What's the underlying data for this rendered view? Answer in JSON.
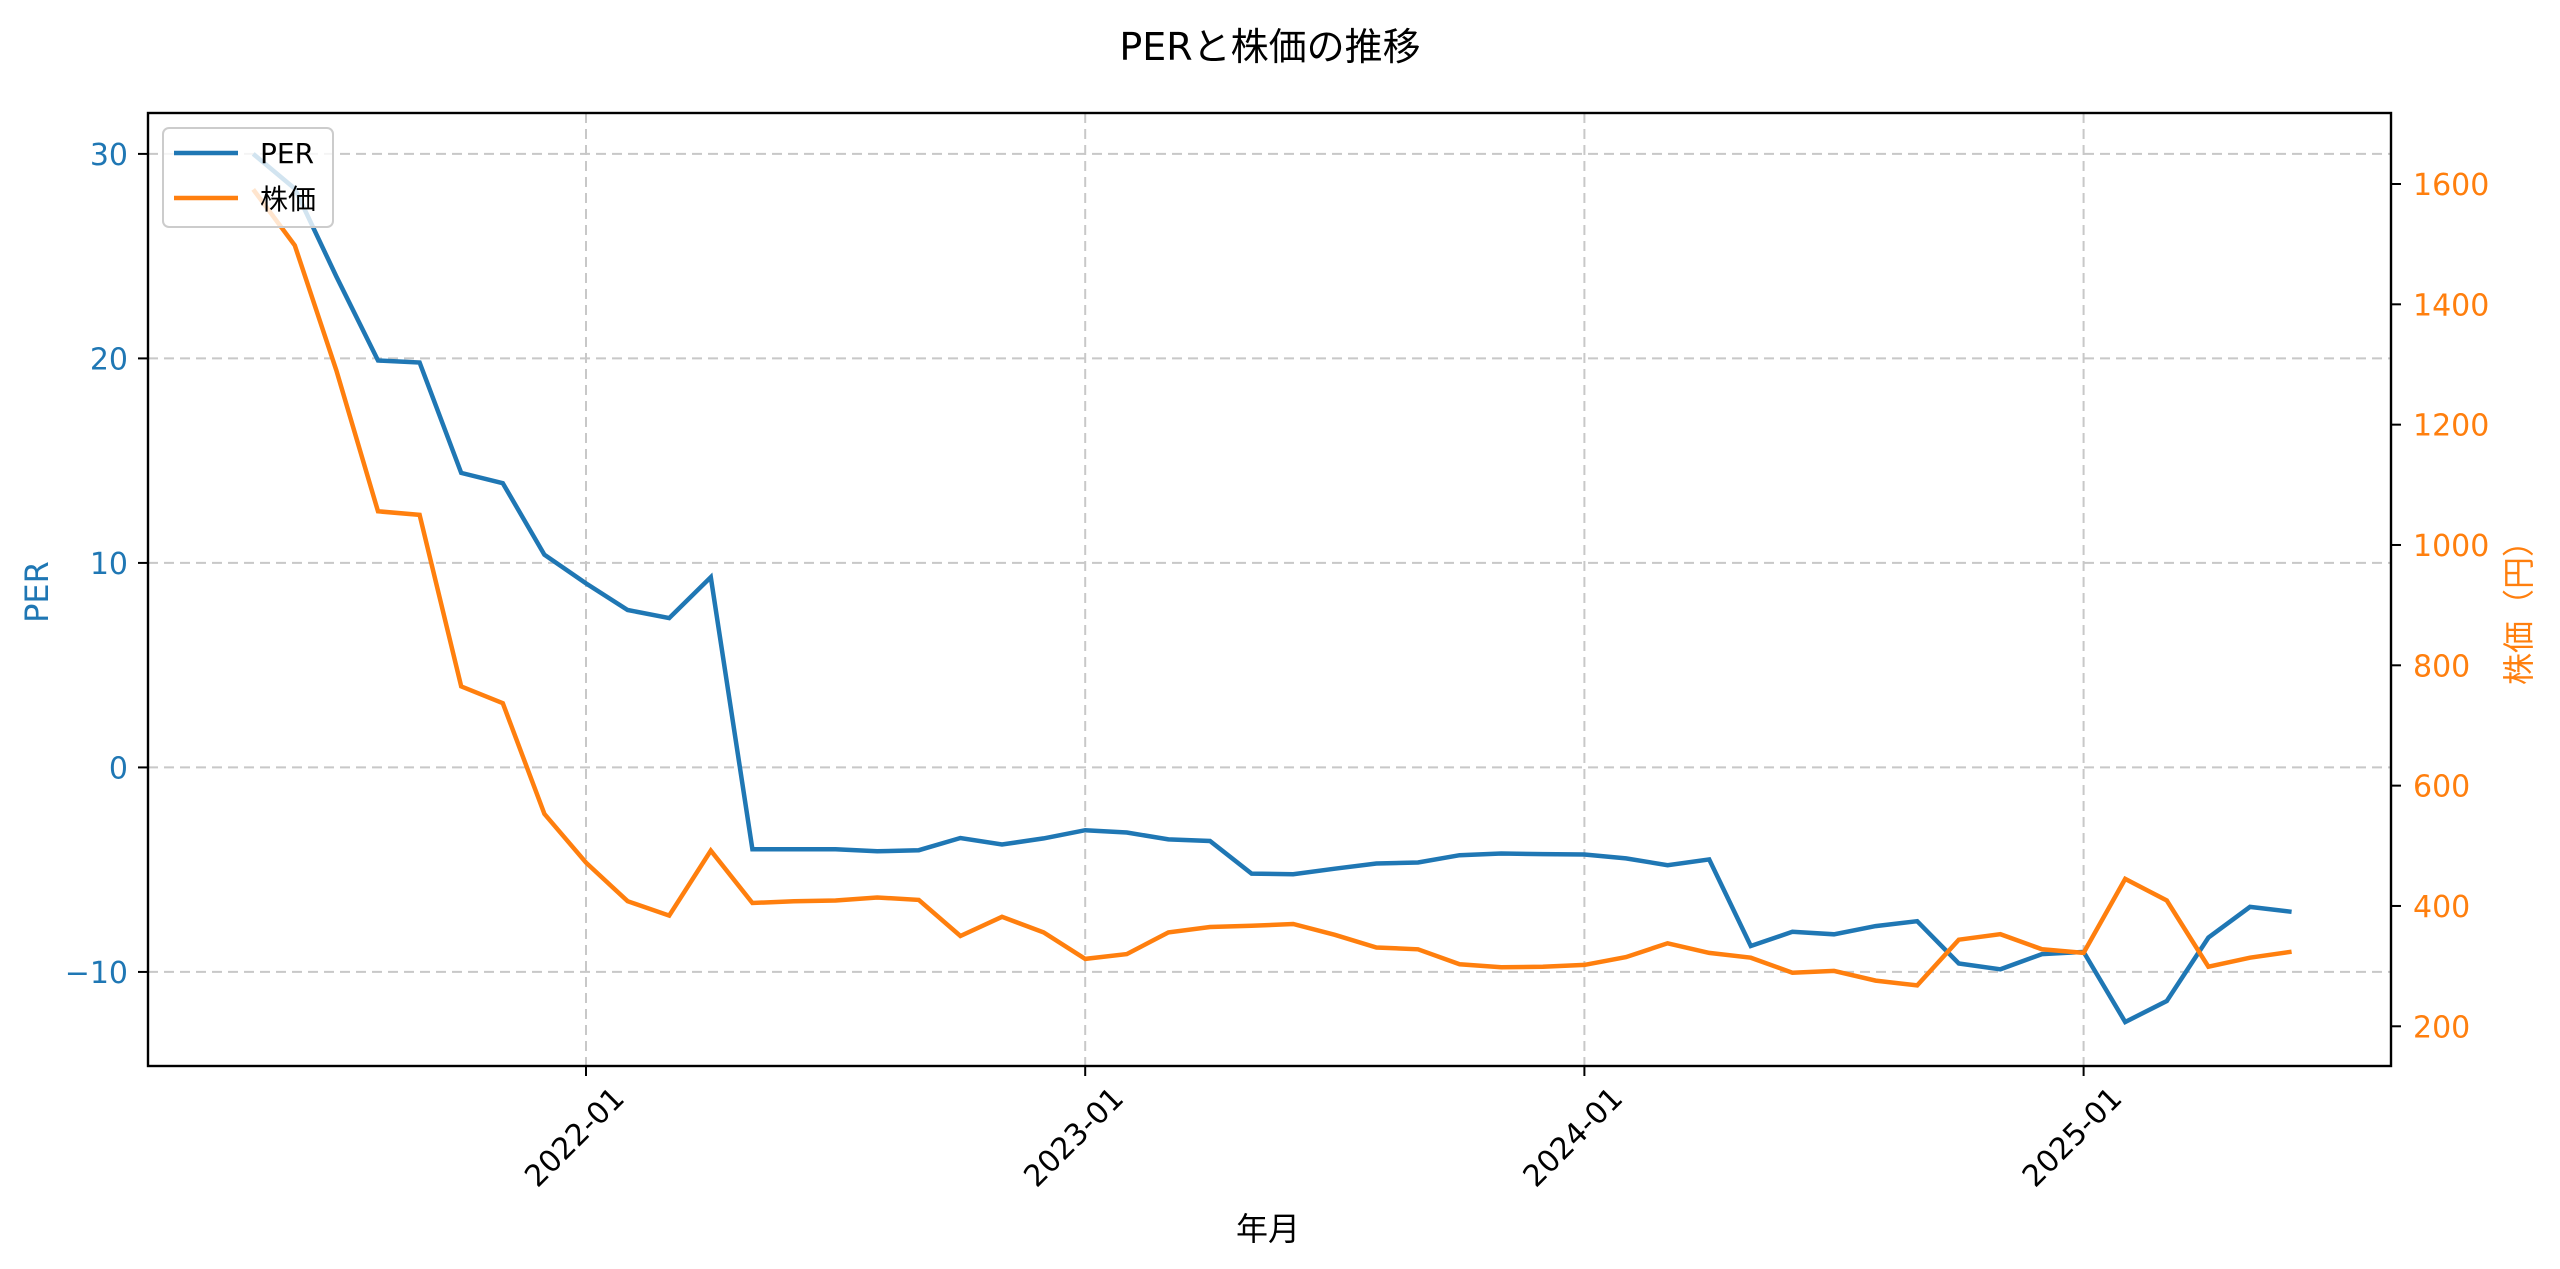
{
  "chart": {
    "title": "PERと株価の推移",
    "xlabel": "年月",
    "ylabel_left": "PER",
    "ylabel_right": "株価（円）",
    "legend": [
      {
        "label": "PER",
        "color": "#1f77b4"
      },
      {
        "label": "株価",
        "color": "#ff7f0e"
      }
    ],
    "x_ticks": [
      "2022-01",
      "2023-01",
      "2024-01",
      "2025-01"
    ],
    "y_left_ticks": [
      "30",
      "20",
      "10",
      "0",
      "−10"
    ],
    "y_right_ticks": [
      "1600",
      "1400",
      "1200",
      "1000",
      "800",
      "600",
      "400",
      "200"
    ]
  },
  "chart_data": {
    "type": "line",
    "title": "PERと株価の推移",
    "xlabel": "年月",
    "ylabel": "PER",
    "ylabel_secondary": "株価（円）",
    "grid": true,
    "legend_position": "upper left",
    "x": [
      "2021-05",
      "2021-06",
      "2021-07",
      "2021-08",
      "2021-09",
      "2021-10",
      "2021-11",
      "2021-12",
      "2022-01",
      "2022-02",
      "2022-03",
      "2022-04",
      "2022-05",
      "2022-06",
      "2022-07",
      "2022-08",
      "2022-09",
      "2022-10",
      "2022-11",
      "2022-12",
      "2023-01",
      "2023-02",
      "2023-03",
      "2023-04",
      "2023-05",
      "2023-06",
      "2023-07",
      "2023-08",
      "2023-09",
      "2023-10",
      "2023-11",
      "2023-12",
      "2024-01",
      "2024-02",
      "2024-03",
      "2024-04",
      "2024-05",
      "2024-06",
      "2024-07",
      "2024-08",
      "2024-09",
      "2024-10",
      "2024-11",
      "2024-12",
      "2025-01",
      "2025-02",
      "2025-03",
      "2025-04",
      "2025-05",
      "2025-06"
    ],
    "x_tick_labels": [
      "2022-01",
      "2023-01",
      "2024-01",
      "2025-01"
    ],
    "ylim": [
      -14.6,
      32.0
    ],
    "ylim_secondary": [
      134,
      1718
    ],
    "y_ticks": [
      -10,
      0,
      10,
      20,
      30
    ],
    "y_ticks_secondary": [
      200,
      400,
      600,
      800,
      1000,
      1200,
      1400,
      1600
    ],
    "series": [
      {
        "name": "PER",
        "axis": "left",
        "color": "#1f77b4",
        "values": [
          30.0,
          28.3,
          24.0,
          19.9,
          19.8,
          14.4,
          13.9,
          10.4,
          9.0,
          7.7,
          7.3,
          9.3,
          -4.0,
          -4.0,
          -4.0,
          -4.1,
          -4.05,
          -3.45,
          -3.77,
          -3.47,
          -3.07,
          -3.18,
          -3.52,
          -3.6,
          -5.19,
          -5.22,
          -4.95,
          -4.7,
          -4.65,
          -4.29,
          -4.21,
          -4.24,
          -4.26,
          -4.45,
          -4.78,
          -4.5,
          -8.73,
          -8.04,
          -8.16,
          -7.76,
          -7.52,
          -9.59,
          -9.87,
          -9.13,
          -9.02,
          -12.45,
          -11.42,
          -8.32,
          -6.82,
          -7.06
        ]
      },
      {
        "name": "株価",
        "axis": "right",
        "color": "#ff7f0e",
        "values": [
          1591,
          1498,
          1290,
          1056,
          1050,
          765,
          737,
          553,
          472,
          408,
          384,
          492,
          405,
          408,
          409,
          414,
          410,
          350,
          382,
          356,
          312,
          320,
          356,
          365,
          367,
          370,
          352,
          331,
          328,
          303,
          298,
          299,
          302,
          315,
          338,
          322,
          314,
          289,
          292,
          276,
          268,
          344,
          353,
          328,
          322,
          445,
          409,
          299,
          314,
          324
        ]
      }
    ]
  }
}
